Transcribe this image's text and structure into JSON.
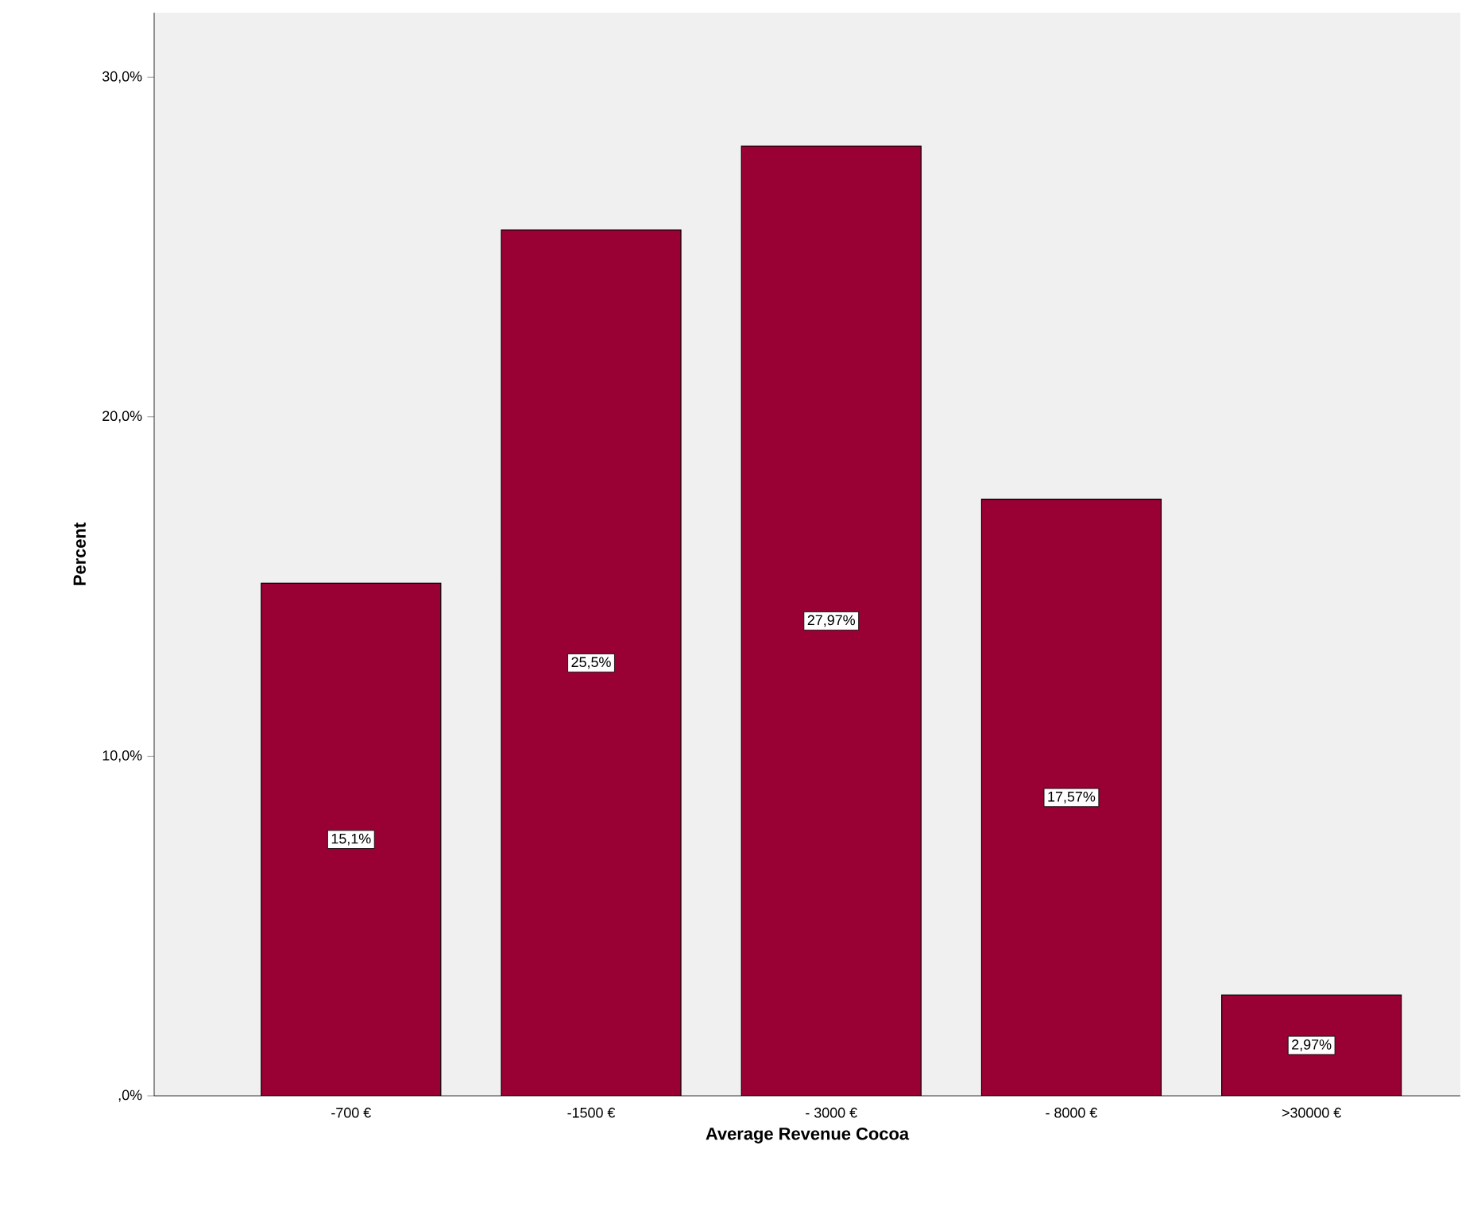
{
  "chart_data": {
    "type": "bar",
    "xlabel": "Average Revenue Cocoa",
    "ylabel": "Percent",
    "categories": [
      "-700 €",
      "-1500 €",
      "- 3000 €",
      "- 8000 €",
      ">30000 €"
    ],
    "values": [
      15.1,
      25.5,
      27.97,
      17.57,
      2.97
    ],
    "value_labels": [
      "15,1%",
      "25,5%",
      "27,97%",
      "17,57%",
      "2,97%"
    ],
    "color": "#990033",
    "ylim": [
      0,
      31.9
    ],
    "yticks": [
      {
        "value": 0,
        "label": ",0%"
      },
      {
        "value": 10,
        "label": "10,0%"
      },
      {
        "value": 20,
        "label": "20,0%"
      },
      {
        "value": 30,
        "label": "30,0%"
      }
    ]
  }
}
